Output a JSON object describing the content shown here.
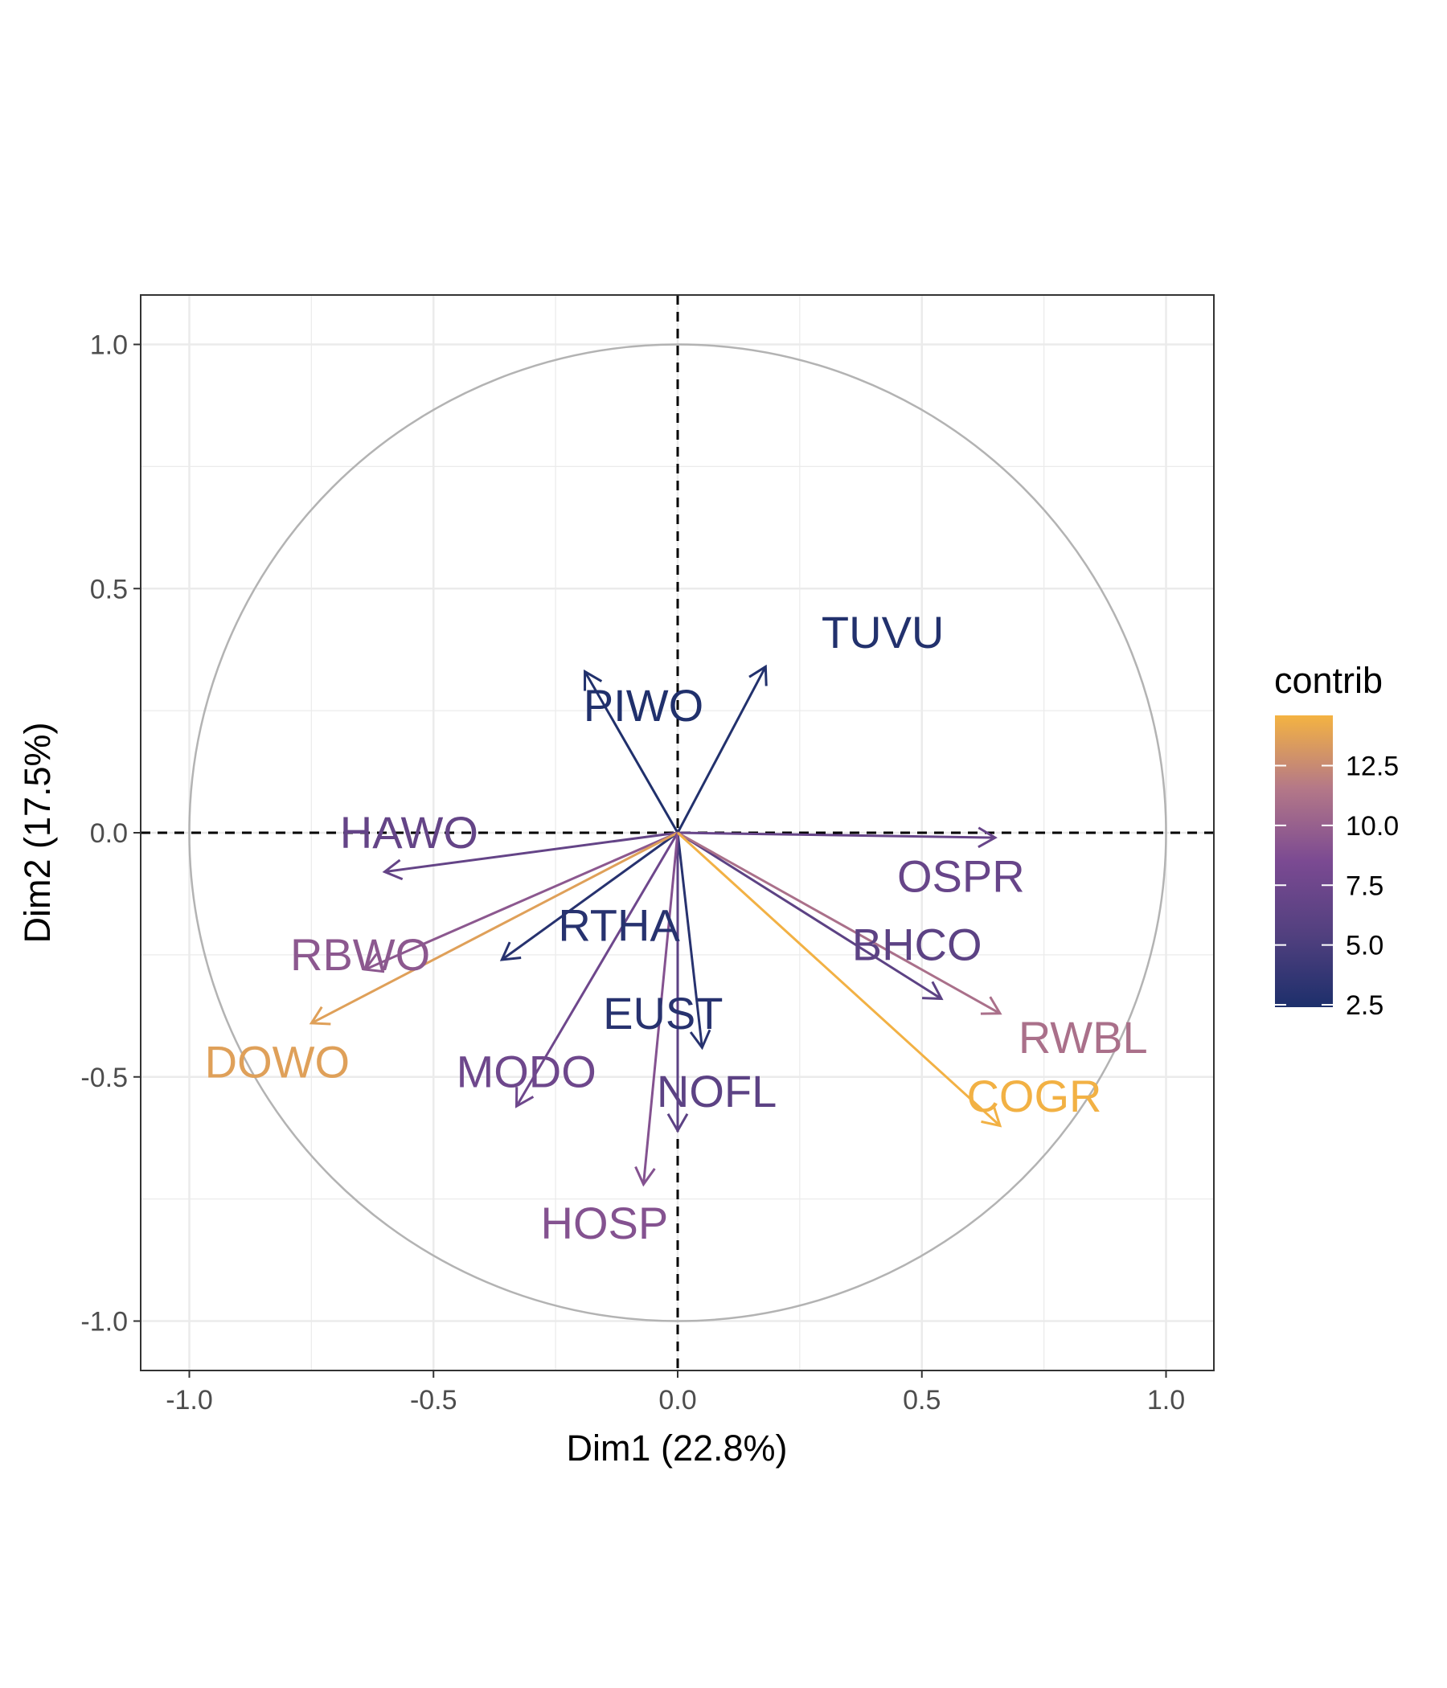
{
  "chart_data": {
    "type": "scatter",
    "subtype": "pca-variable-correlation-circle",
    "title": "",
    "xlabel": "Dim1 (22.8%)",
    "ylabel": "Dim2 (17.5%)",
    "xlim": [
      -1.1,
      1.1
    ],
    "ylim": [
      -1.1,
      1.1
    ],
    "x_ticks": [
      -1.0,
      -0.5,
      0.0,
      0.5,
      1.0
    ],
    "y_ticks": [
      -1.0,
      -0.5,
      0.0,
      0.5,
      1.0
    ],
    "x_tick_labels": [
      "-1.0",
      "-0.5",
      "0.0",
      "0.5",
      "1.0"
    ],
    "y_tick_labels": [
      "-1.0",
      "-0.5",
      "0.0",
      "0.5",
      "1.0"
    ],
    "grid": true,
    "reference_lines": [
      "x = 0 dashed",
      "y = 0 dashed"
    ],
    "unit_circle": true,
    "color_by": "contrib",
    "legend": {
      "title": "contrib",
      "position": "right",
      "ticks": [
        2.5,
        5.0,
        7.5,
        10.0,
        12.5
      ],
      "tick_labels": [
        "2.5",
        "5.0",
        "7.5",
        "10.0",
        "12.5"
      ],
      "range": [
        2.4,
        14.6
      ],
      "colors": [
        "#1d2f6b",
        "#52407f",
        "#7b4a92",
        "#b47888",
        "#f4b342"
      ]
    },
    "points": [
      {
        "name": "TUVU",
        "x": 0.18,
        "y": 0.34,
        "contrib": 2.7
      },
      {
        "name": "PIWO",
        "x": -0.19,
        "y": 0.33,
        "contrib": 2.6
      },
      {
        "name": "HAWO",
        "x": -0.6,
        "y": -0.08,
        "contrib": 6.8
      },
      {
        "name": "RBWO",
        "x": -0.64,
        "y": -0.28,
        "contrib": 9.4
      },
      {
        "name": "RTHA",
        "x": -0.36,
        "y": -0.26,
        "contrib": 3.0
      },
      {
        "name": "DOWO",
        "x": -0.75,
        "y": -0.39,
        "contrib": 13.6
      },
      {
        "name": "MODO",
        "x": -0.33,
        "y": -0.56,
        "contrib": 7.5
      },
      {
        "name": "EUST",
        "x": 0.05,
        "y": -0.44,
        "contrib": 3.0
      },
      {
        "name": "NOFL",
        "x": 0.0,
        "y": -0.61,
        "contrib": 6.2
      },
      {
        "name": "HOSP",
        "x": -0.07,
        "y": -0.72,
        "contrib": 9.0
      },
      {
        "name": "OSPR",
        "x": 0.65,
        "y": -0.01,
        "contrib": 7.0
      },
      {
        "name": "BHCO",
        "x": 0.54,
        "y": -0.34,
        "contrib": 6.2
      },
      {
        "name": "RWBL",
        "x": 0.66,
        "y": -0.37,
        "contrib": 11.0
      },
      {
        "name": "COGR",
        "x": 0.66,
        "y": -0.6,
        "contrib": 14.5
      }
    ]
  }
}
